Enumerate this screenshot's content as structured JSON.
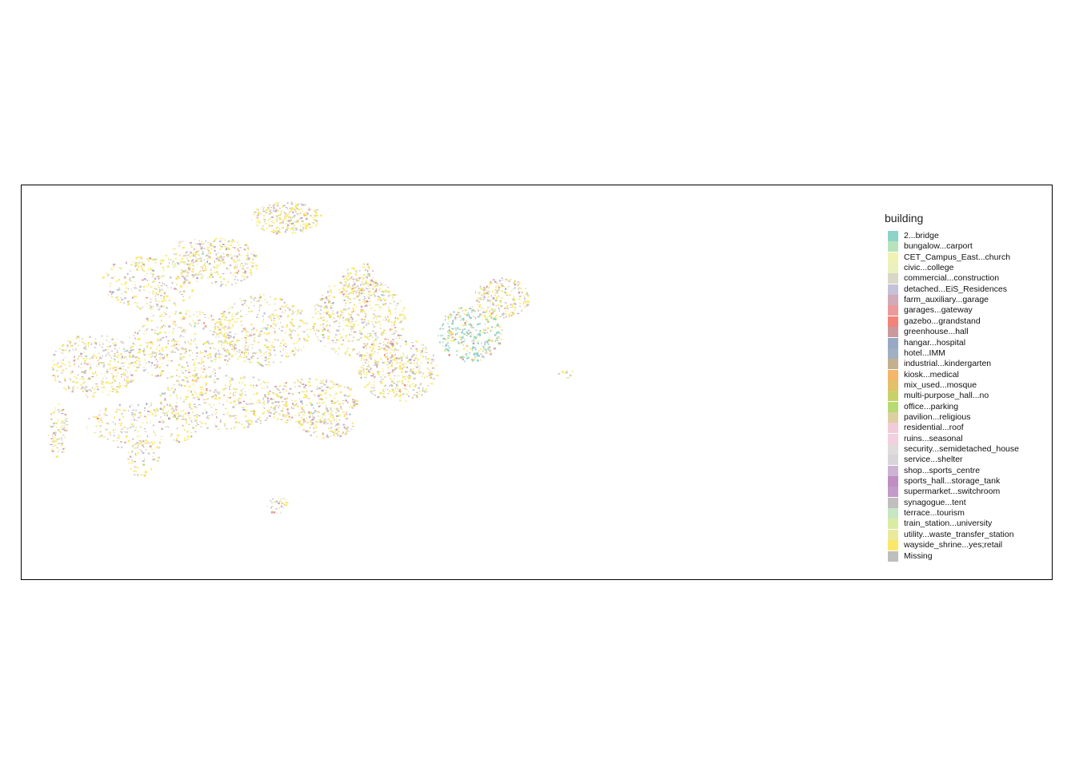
{
  "legend": {
    "title": "building",
    "items": [
      {
        "label": "2...bridge",
        "color": "#8dd3c7"
      },
      {
        "label": "bungalow...carport",
        "color": "#b7e3bc"
      },
      {
        "label": "CET_Campus_East...church",
        "color": "#eef3b3"
      },
      {
        "label": "civic...college",
        "color": "#ecefc0"
      },
      {
        "label": "commercial...construction",
        "color": "#d9d7c6"
      },
      {
        "label": "detached...EiS_Residences",
        "color": "#c4c1d8"
      },
      {
        "label": "farm_auxiliary...garage",
        "color": "#d2aab8"
      },
      {
        "label": "garages...gateway",
        "color": "#ea9a9a"
      },
      {
        "label": "gazebo...grandstand",
        "color": "#f38478"
      },
      {
        "label": "greenhouse...hall",
        "color": "#c9999b"
      },
      {
        "label": "hangar...hospital",
        "color": "#98a9c6"
      },
      {
        "label": "hotel...IMM",
        "color": "#9fb0c3"
      },
      {
        "label": "industrial...kindergarten",
        "color": "#c3b08f"
      },
      {
        "label": "kiosk...medical",
        "color": "#f4b66a"
      },
      {
        "label": "mix_used...mosque",
        "color": "#e3c06a"
      },
      {
        "label": "multi-purpose_hall...no",
        "color": "#c9d06a"
      },
      {
        "label": "office...parking",
        "color": "#b8da72"
      },
      {
        "label": "pavilion...religious",
        "color": "#dcd0a2"
      },
      {
        "label": "residential...roof",
        "color": "#f2cbd9"
      },
      {
        "label": "ruins...seasonal",
        "color": "#f3cfe0"
      },
      {
        "label": "security...semidetached_house",
        "color": "#e0dcdc"
      },
      {
        "label": "service...shelter",
        "color": "#d7d5d8"
      },
      {
        "label": "shop...sports_centre",
        "color": "#ccb4d2"
      },
      {
        "label": "sports_hall...storage_tank",
        "color": "#c08ec2"
      },
      {
        "label": "supermarket...switchroom",
        "color": "#c39ac8"
      },
      {
        "label": "synagogue...tent",
        "color": "#c2bec0"
      },
      {
        "label": "terrace...tourism",
        "color": "#c7e6c4"
      },
      {
        "label": "train_station...university",
        "color": "#daeca4"
      },
      {
        "label": "utility...waste_transfer_station",
        "color": "#eaea9c"
      },
      {
        "label": "wayside_shrine...yes;retail",
        "color": "#fbe86a"
      },
      {
        "label": "Missing",
        "color": "#bebebe"
      }
    ]
  }
}
